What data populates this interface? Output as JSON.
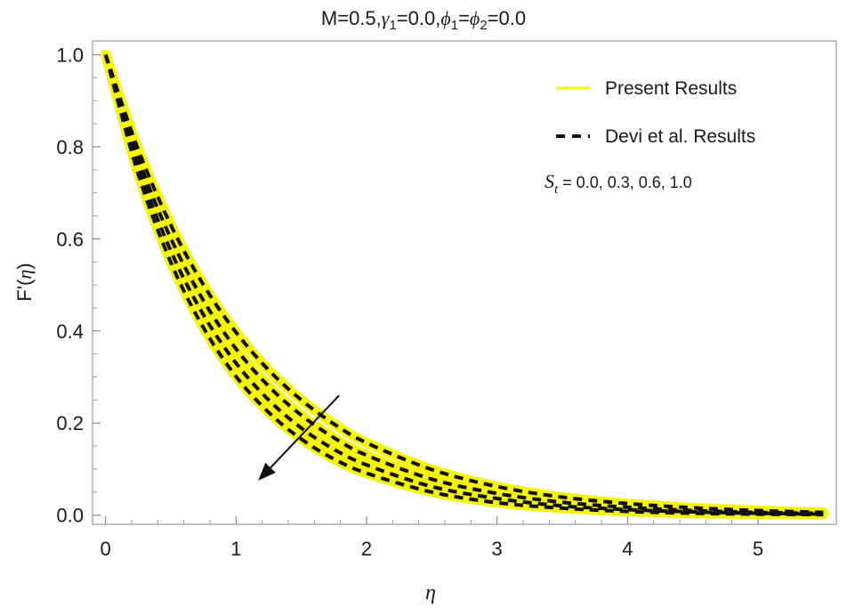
{
  "chart_data": {
    "type": "line",
    "title": "M=0.5,γ1=0.0,ϕ1=ϕ2=0.0",
    "title_parts": {
      "m": "M=0.5,",
      "gamma": "γ",
      "gamma_sub": "1",
      "gamma_val": "=0.0,",
      "phi1": "ϕ",
      "phi1_sub": "1",
      "eq": "=",
      "phi2": "ϕ",
      "phi2_sub": "2",
      "phi_val": "=0.0"
    },
    "xlabel": "η",
    "ylabel": "F'(η)",
    "ylabel_parts": {
      "prefix": "F'(",
      "eta": "η",
      "suffix": ")"
    },
    "xlim": [
      -0.1,
      5.6
    ],
    "ylim": [
      -0.02,
      1.03
    ],
    "x_ticks": [
      0,
      1,
      2,
      3,
      4,
      5
    ],
    "x_tick_labels": [
      "0",
      "1",
      "2",
      "3",
      "4",
      "5"
    ],
    "y_ticks": [
      0.0,
      0.2,
      0.4,
      0.6,
      0.8,
      1.0
    ],
    "y_tick_labels": [
      "0.0",
      "0.2",
      "0.4",
      "0.6",
      "0.8",
      "1.0"
    ],
    "x_max": 5.5,
    "grid": false,
    "legend_position": "top-right",
    "legend": [
      {
        "label": "Present Results",
        "style": "solid",
        "color": "#f5f500"
      },
      {
        "label": "Devi et al. Results",
        "style": "dashed",
        "color": "#111111"
      }
    ],
    "annotation": {
      "sym": "S",
      "sub": "t",
      "text": " = 0.0, 0.3, 0.6, 1.0"
    },
    "arrow": {
      "from": [
        1.79,
        0.26
      ],
      "to": [
        1.17,
        0.075
      ]
    },
    "series": [
      {
        "St": 0.0,
        "x": [
          0,
          0.25,
          0.5,
          0.75,
          1,
          1.25,
          1.5,
          1.75,
          2,
          2.5,
          3,
          3.5,
          4,
          4.5,
          5,
          5.5
        ],
        "y": [
          1.0,
          0.794,
          0.63,
          0.5,
          0.397,
          0.315,
          0.25,
          0.198,
          0.157,
          0.099,
          0.062,
          0.039,
          0.025,
          0.016,
          0.01,
          0.006
        ]
      },
      {
        "St": 0.3,
        "x": [
          0,
          0.25,
          0.5,
          0.75,
          1,
          1.25,
          1.5,
          1.75,
          2,
          2.5,
          3,
          3.5,
          4,
          4.5,
          5,
          5.5
        ],
        "y": [
          1.0,
          0.775,
          0.601,
          0.466,
          0.361,
          0.28,
          0.217,
          0.168,
          0.13,
          0.078,
          0.047,
          0.028,
          0.017,
          0.01,
          0.006,
          0.004
        ]
      },
      {
        "St": 0.6,
        "x": [
          0,
          0.25,
          0.5,
          0.75,
          1,
          1.25,
          1.5,
          1.75,
          2,
          2.5,
          3,
          3.5,
          4,
          4.5,
          5,
          5.5
        ],
        "y": [
          1.0,
          0.758,
          0.574,
          0.435,
          0.33,
          0.25,
          0.189,
          0.143,
          0.109,
          0.062,
          0.036,
          0.02,
          0.012,
          0.007,
          0.004,
          0.002
        ]
      },
      {
        "St": 1.0,
        "x": [
          0,
          0.25,
          0.5,
          0.75,
          1,
          1.25,
          1.5,
          1.75,
          2,
          2.5,
          3,
          3.5,
          4,
          4.5,
          5,
          5.5
        ],
        "y": [
          1.0,
          0.741,
          0.549,
          0.407,
          0.301,
          0.223,
          0.165,
          0.122,
          0.091,
          0.05,
          0.027,
          0.015,
          0.008,
          0.004,
          0.002,
          0.001
        ]
      }
    ]
  }
}
